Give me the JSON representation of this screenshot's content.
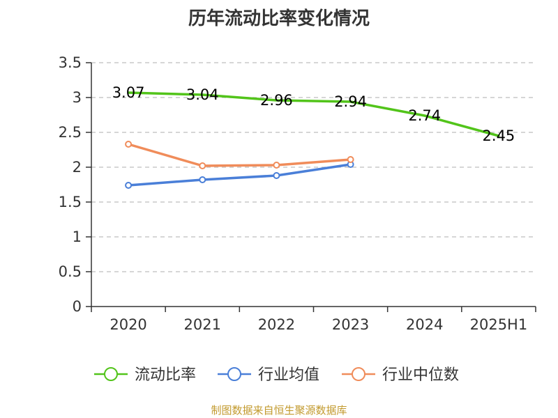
{
  "title": "历年流动比率变化情况",
  "source": "制图数据来自恒生聚源数据库",
  "chart_data": {
    "type": "line",
    "title": "历年流动比率变化情况",
    "x": [
      "2020",
      "2021",
      "2022",
      "2023",
      "2024",
      "2025H1"
    ],
    "ylim": [
      0,
      3.5
    ],
    "yticks": [
      "0",
      "0.5",
      "1",
      "1.5",
      "2",
      "2.5",
      "3",
      "3.5"
    ],
    "grid": true,
    "legend_position": "bottom",
    "series": [
      {
        "name": "流动比率",
        "color": "#52c41a",
        "marker": "none",
        "values": [
          3.07,
          3.04,
          2.96,
          2.94,
          2.74,
          2.45
        ],
        "labels": [
          "3.07",
          "3.04",
          "2.96",
          "2.94",
          "2.74",
          "2.45"
        ]
      },
      {
        "name": "行业均值",
        "color": "#4a7fd8",
        "marker": "circle",
        "values": [
          1.74,
          1.82,
          1.88,
          2.04,
          null,
          null
        ]
      },
      {
        "name": "行业中位数",
        "color": "#f08c5a",
        "marker": "circle",
        "values": [
          2.33,
          2.02,
          2.03,
          2.11,
          null,
          null
        ]
      }
    ]
  }
}
